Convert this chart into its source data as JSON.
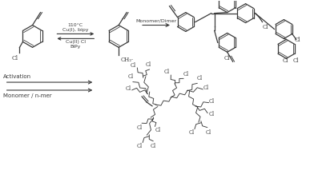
{
  "line_color": "#3a3a3a",
  "text_color": "#3a3a3a",
  "reaction_conditions": [
    "110°C",
    "Cu(I), bipy",
    "Cu(II) Cl",
    "BiPy"
  ],
  "arrow1_label": "Monomer/Dimer",
  "arrow2_label_top": "Activation",
  "arrow2_label_bottom": "Monomer / n-mer",
  "cl_label": "Cl",
  "ch2_label": "CH₂·"
}
